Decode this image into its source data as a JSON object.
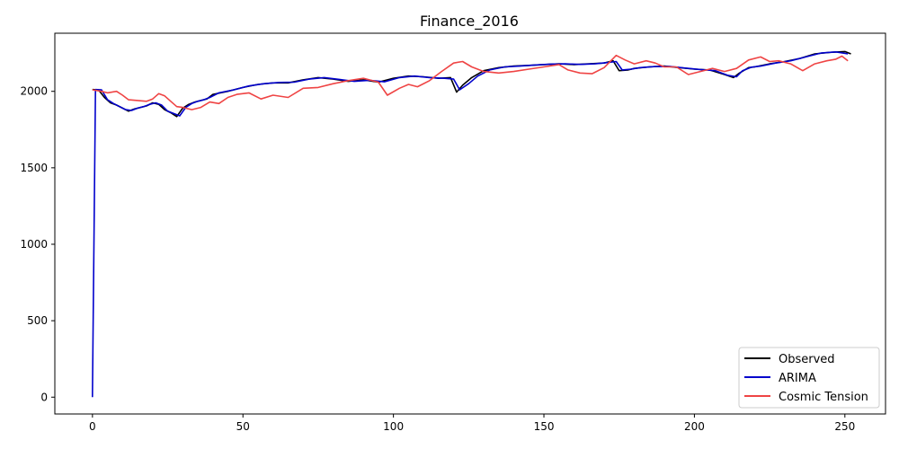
{
  "chart_data": {
    "type": "line",
    "title": "Finance_2016",
    "xlabel": "",
    "ylabel": "",
    "xlim": [
      -12.5,
      263.5
    ],
    "ylim": [
      -110,
      2380
    ],
    "x_ticks": [
      0,
      50,
      100,
      150,
      200,
      250
    ],
    "y_ticks": [
      0,
      500,
      1000,
      1500,
      2000
    ],
    "grid": false,
    "legend_position": "lower-right",
    "series": [
      {
        "name": "Observed",
        "color": "#000000",
        "points": [
          [
            0,
            2012
          ],
          [
            2,
            2010
          ],
          [
            4,
            1960
          ],
          [
            6,
            1925
          ],
          [
            8,
            1910
          ],
          [
            10,
            1890
          ],
          [
            12,
            1870
          ],
          [
            14,
            1885
          ],
          [
            16,
            1895
          ],
          [
            18,
            1905
          ],
          [
            20,
            1925
          ],
          [
            22,
            1915
          ],
          [
            24,
            1880
          ],
          [
            26,
            1860
          ],
          [
            28,
            1835
          ],
          [
            30,
            1890
          ],
          [
            32,
            1915
          ],
          [
            34,
            1930
          ],
          [
            36,
            1940
          ],
          [
            38,
            1950
          ],
          [
            40,
            1980
          ],
          [
            45,
            2000
          ],
          [
            50,
            2025
          ],
          [
            55,
            2045
          ],
          [
            60,
            2055
          ],
          [
            65,
            2055
          ],
          [
            70,
            2075
          ],
          [
            75,
            2090
          ],
          [
            80,
            2080
          ],
          [
            85,
            2065
          ],
          [
            90,
            2075
          ],
          [
            95,
            2060
          ],
          [
            100,
            2085
          ],
          [
            105,
            2100
          ],
          [
            110,
            2095
          ],
          [
            115,
            2085
          ],
          [
            119,
            2090
          ],
          [
            121,
            1995
          ],
          [
            123,
            2040
          ],
          [
            126,
            2090
          ],
          [
            130,
            2135
          ],
          [
            135,
            2155
          ],
          [
            140,
            2165
          ],
          [
            145,
            2170
          ],
          [
            150,
            2175
          ],
          [
            155,
            2180
          ],
          [
            160,
            2175
          ],
          [
            165,
            2180
          ],
          [
            170,
            2185
          ],
          [
            173,
            2200
          ],
          [
            175,
            2135
          ],
          [
            178,
            2140
          ],
          [
            180,
            2150
          ],
          [
            185,
            2160
          ],
          [
            190,
            2165
          ],
          [
            195,
            2155
          ],
          [
            200,
            2145
          ],
          [
            205,
            2140
          ],
          [
            210,
            2110
          ],
          [
            213,
            2090
          ],
          [
            215,
            2120
          ],
          [
            218,
            2155
          ],
          [
            220,
            2160
          ],
          [
            225,
            2180
          ],
          [
            230,
            2195
          ],
          [
            235,
            2215
          ],
          [
            240,
            2245
          ],
          [
            245,
            2255
          ],
          [
            250,
            2260
          ],
          [
            252,
            2245
          ]
        ]
      },
      {
        "name": "ARIMA",
        "color": "#0000cc",
        "points": [
          [
            0,
            0
          ],
          [
            1,
            2012
          ],
          [
            3,
            2010
          ],
          [
            5,
            1945
          ],
          [
            7,
            1920
          ],
          [
            9,
            1900
          ],
          [
            11,
            1880
          ],
          [
            13,
            1875
          ],
          [
            15,
            1890
          ],
          [
            17,
            1900
          ],
          [
            19,
            1915
          ],
          [
            21,
            1925
          ],
          [
            23,
            1910
          ],
          [
            25,
            1870
          ],
          [
            27,
            1855
          ],
          [
            29,
            1840
          ],
          [
            31,
            1895
          ],
          [
            33,
            1920
          ],
          [
            35,
            1935
          ],
          [
            37,
            1945
          ],
          [
            39,
            1960
          ],
          [
            42,
            1990
          ],
          [
            47,
            2010
          ],
          [
            52,
            2035
          ],
          [
            57,
            2050
          ],
          [
            62,
            2058
          ],
          [
            67,
            2060
          ],
          [
            72,
            2080
          ],
          [
            77,
            2090
          ],
          [
            82,
            2078
          ],
          [
            87,
            2065
          ],
          [
            92,
            2072
          ],
          [
            97,
            2062
          ],
          [
            102,
            2090
          ],
          [
            107,
            2100
          ],
          [
            112,
            2090
          ],
          [
            117,
            2085
          ],
          [
            120,
            2080
          ],
          [
            122,
            2010
          ],
          [
            125,
            2050
          ],
          [
            128,
            2100
          ],
          [
            132,
            2140
          ],
          [
            137,
            2160
          ],
          [
            142,
            2165
          ],
          [
            147,
            2172
          ],
          [
            152,
            2178
          ],
          [
            157,
            2180
          ],
          [
            162,
            2176
          ],
          [
            167,
            2180
          ],
          [
            171,
            2188
          ],
          [
            174,
            2195
          ],
          [
            176,
            2140
          ],
          [
            179,
            2145
          ],
          [
            182,
            2155
          ],
          [
            187,
            2162
          ],
          [
            192,
            2163
          ],
          [
            197,
            2152
          ],
          [
            202,
            2143
          ],
          [
            207,
            2135
          ],
          [
            211,
            2105
          ],
          [
            214,
            2095
          ],
          [
            216,
            2135
          ],
          [
            219,
            2158
          ],
          [
            222,
            2165
          ],
          [
            227,
            2185
          ],
          [
            232,
            2200
          ],
          [
            237,
            2225
          ],
          [
            242,
            2250
          ],
          [
            247,
            2258
          ],
          [
            251,
            2245
          ]
        ]
      },
      {
        "name": "Cosmic Tension",
        "color": "#ef4444",
        "points": [
          [
            0,
            2010
          ],
          [
            3,
            2000
          ],
          [
            5,
            1990
          ],
          [
            8,
            2000
          ],
          [
            10,
            1975
          ],
          [
            12,
            1945
          ],
          [
            15,
            1940
          ],
          [
            18,
            1935
          ],
          [
            20,
            1950
          ],
          [
            22,
            1985
          ],
          [
            24,
            1970
          ],
          [
            26,
            1935
          ],
          [
            28,
            1900
          ],
          [
            30,
            1895
          ],
          [
            33,
            1880
          ],
          [
            36,
            1895
          ],
          [
            39,
            1930
          ],
          [
            42,
            1920
          ],
          [
            45,
            1960
          ],
          [
            48,
            1980
          ],
          [
            52,
            1990
          ],
          [
            56,
            1950
          ],
          [
            60,
            1975
          ],
          [
            65,
            1960
          ],
          [
            70,
            2020
          ],
          [
            75,
            2025
          ],
          [
            80,
            2050
          ],
          [
            85,
            2070
          ],
          [
            90,
            2085
          ],
          [
            95,
            2060
          ],
          [
            98,
            1975
          ],
          [
            102,
            2020
          ],
          [
            105,
            2045
          ],
          [
            108,
            2030
          ],
          [
            112,
            2070
          ],
          [
            116,
            2130
          ],
          [
            120,
            2185
          ],
          [
            123,
            2195
          ],
          [
            126,
            2160
          ],
          [
            130,
            2130
          ],
          [
            135,
            2120
          ],
          [
            140,
            2130
          ],
          [
            145,
            2145
          ],
          [
            150,
            2160
          ],
          [
            155,
            2175
          ],
          [
            158,
            2140
          ],
          [
            162,
            2120
          ],
          [
            166,
            2115
          ],
          [
            170,
            2155
          ],
          [
            174,
            2235
          ],
          [
            177,
            2205
          ],
          [
            180,
            2180
          ],
          [
            184,
            2200
          ],
          [
            187,
            2185
          ],
          [
            190,
            2160
          ],
          [
            194,
            2160
          ],
          [
            198,
            2110
          ],
          [
            202,
            2130
          ],
          [
            206,
            2150
          ],
          [
            210,
            2130
          ],
          [
            214,
            2150
          ],
          [
            218,
            2205
          ],
          [
            222,
            2225
          ],
          [
            225,
            2195
          ],
          [
            228,
            2200
          ],
          [
            232,
            2180
          ],
          [
            236,
            2135
          ],
          [
            240,
            2180
          ],
          [
            244,
            2200
          ],
          [
            247,
            2210
          ],
          [
            249,
            2230
          ],
          [
            251,
            2200
          ]
        ]
      }
    ]
  }
}
